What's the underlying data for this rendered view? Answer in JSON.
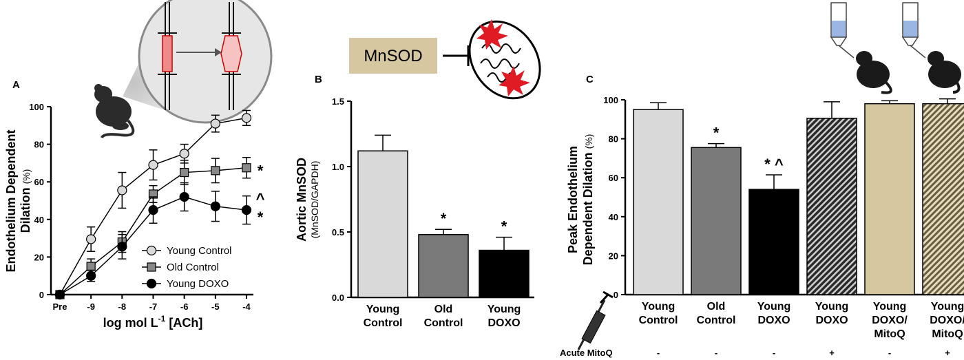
{
  "panel_labels": {
    "a": "A",
    "b": "B",
    "c": "C"
  },
  "mnsod_box_label": "MnSOD",
  "colors": {
    "young_control": "#d9d9d9",
    "old_control": "#7a7a7a",
    "young_doxo": "#000000",
    "mitoq": "#d6c7a1",
    "rat": "#2b2b2b",
    "ros_red": "#e01b23",
    "vessel_red": "#f4b8b8",
    "syringe_blue": "#9bb6e3"
  },
  "icons": [
    "rat-icon",
    "pressure-myograph-icon",
    "mitochondrion-icon",
    "ros-burst-icon",
    "syringe-icon",
    "dropper-tube-icon"
  ],
  "chart_data": [
    {
      "type": "line",
      "panel": "A",
      "title": "",
      "xlabel": "log mol L-1 [ACh]",
      "ylabel": "Endothelium Dependent Dilation",
      "ylabel_unit": "(%)",
      "x": [
        "Pre",
        "-9",
        "-8",
        "-7",
        "-6",
        "-5",
        "-4"
      ],
      "ylim": [
        0,
        100
      ],
      "yticks": [
        "0",
        "20",
        "40",
        "60",
        "80",
        "100"
      ],
      "series": [
        {
          "name": "Young Control",
          "marker": "circle",
          "fill": "#d9d9d9",
          "values": [
            0,
            29.5,
            55.5,
            69,
            75,
            91,
            94
          ],
          "errors": [
            0,
            6.5,
            9.5,
            8,
            5,
            4.5,
            4
          ]
        },
        {
          "name": "Old Control",
          "marker": "square",
          "fill": "#888888",
          "values": [
            0,
            15,
            28,
            53.5,
            65,
            66,
            67.5
          ],
          "errors": [
            0,
            4,
            5.5,
            4.5,
            6.5,
            6.5,
            5.5
          ]
        },
        {
          "name": "Young DOXO",
          "marker": "circle",
          "fill": "#000000",
          "values": [
            0,
            10,
            25.5,
            45,
            52,
            47,
            45
          ],
          "errors": [
            0,
            3,
            6.5,
            7,
            7.5,
            8,
            7.5
          ]
        }
      ],
      "annotations": [
        {
          "text": "*",
          "series": "Old Control",
          "x": "-4"
        },
        {
          "text": "^",
          "series": "Young DOXO",
          "x": "-4",
          "row": "upper"
        },
        {
          "text": "*",
          "series": "Young DOXO",
          "x": "-4",
          "row": "lower"
        }
      ],
      "legend": "bottom-right"
    },
    {
      "type": "bar",
      "panel": "B",
      "title": "",
      "ylabel": "Aortic MnSOD",
      "ylabel_unit": "(MnSOD/GAPDH)",
      "categories": [
        [
          "Young",
          "Control"
        ],
        [
          "Old",
          "Control"
        ],
        [
          "Young",
          "DOXO"
        ]
      ],
      "values": [
        1.12,
        0.48,
        0.36
      ],
      "errors": [
        0.12,
        0.04,
        0.1
      ],
      "fills": [
        "#d9d9d9",
        "#7a7a7a",
        "#000000"
      ],
      "ylim": [
        0,
        1.5
      ],
      "yticks": [
        "0.0",
        "0.5",
        "1.0",
        "1.5"
      ],
      "annotations": [
        "",
        "*",
        "*"
      ]
    },
    {
      "type": "bar",
      "panel": "C",
      "title": "",
      "ylabel": "Peak Endothelium Dependent Dilation",
      "ylabel_lines": [
        "Peak Endothelium",
        "Dependent Dilation"
      ],
      "ylabel_unit": "(%)",
      "categories": [
        [
          "Young",
          "Control"
        ],
        [
          "Old",
          "Control"
        ],
        [
          "Young",
          "DOXO"
        ],
        [
          "Young",
          "DOXO"
        ],
        [
          "Young",
          "DOXO/",
          "MitoQ"
        ],
        [
          "Young",
          "DOXO/",
          "MitoQ"
        ]
      ],
      "values": [
        95,
        75.5,
        54,
        90.5,
        98,
        98
      ],
      "errors": [
        3.5,
        2,
        7.5,
        8.5,
        1.5,
        2.5
      ],
      "fills": [
        "#d9d9d9",
        "#7a7a7a",
        "#000000",
        "hatch-dark",
        "#d6c7a1",
        "hatch-tan"
      ],
      "ylim": [
        0,
        100
      ],
      "yticks": [
        "0",
        "20",
        "40",
        "60",
        "80",
        "100"
      ],
      "annotations": [
        "",
        "*",
        "*^",
        "",
        "",
        ""
      ],
      "acute_mitoq_label": "Acute MitoQ",
      "acute_mitoq": [
        "-",
        "-",
        "-",
        "+",
        "-",
        "+"
      ]
    }
  ]
}
